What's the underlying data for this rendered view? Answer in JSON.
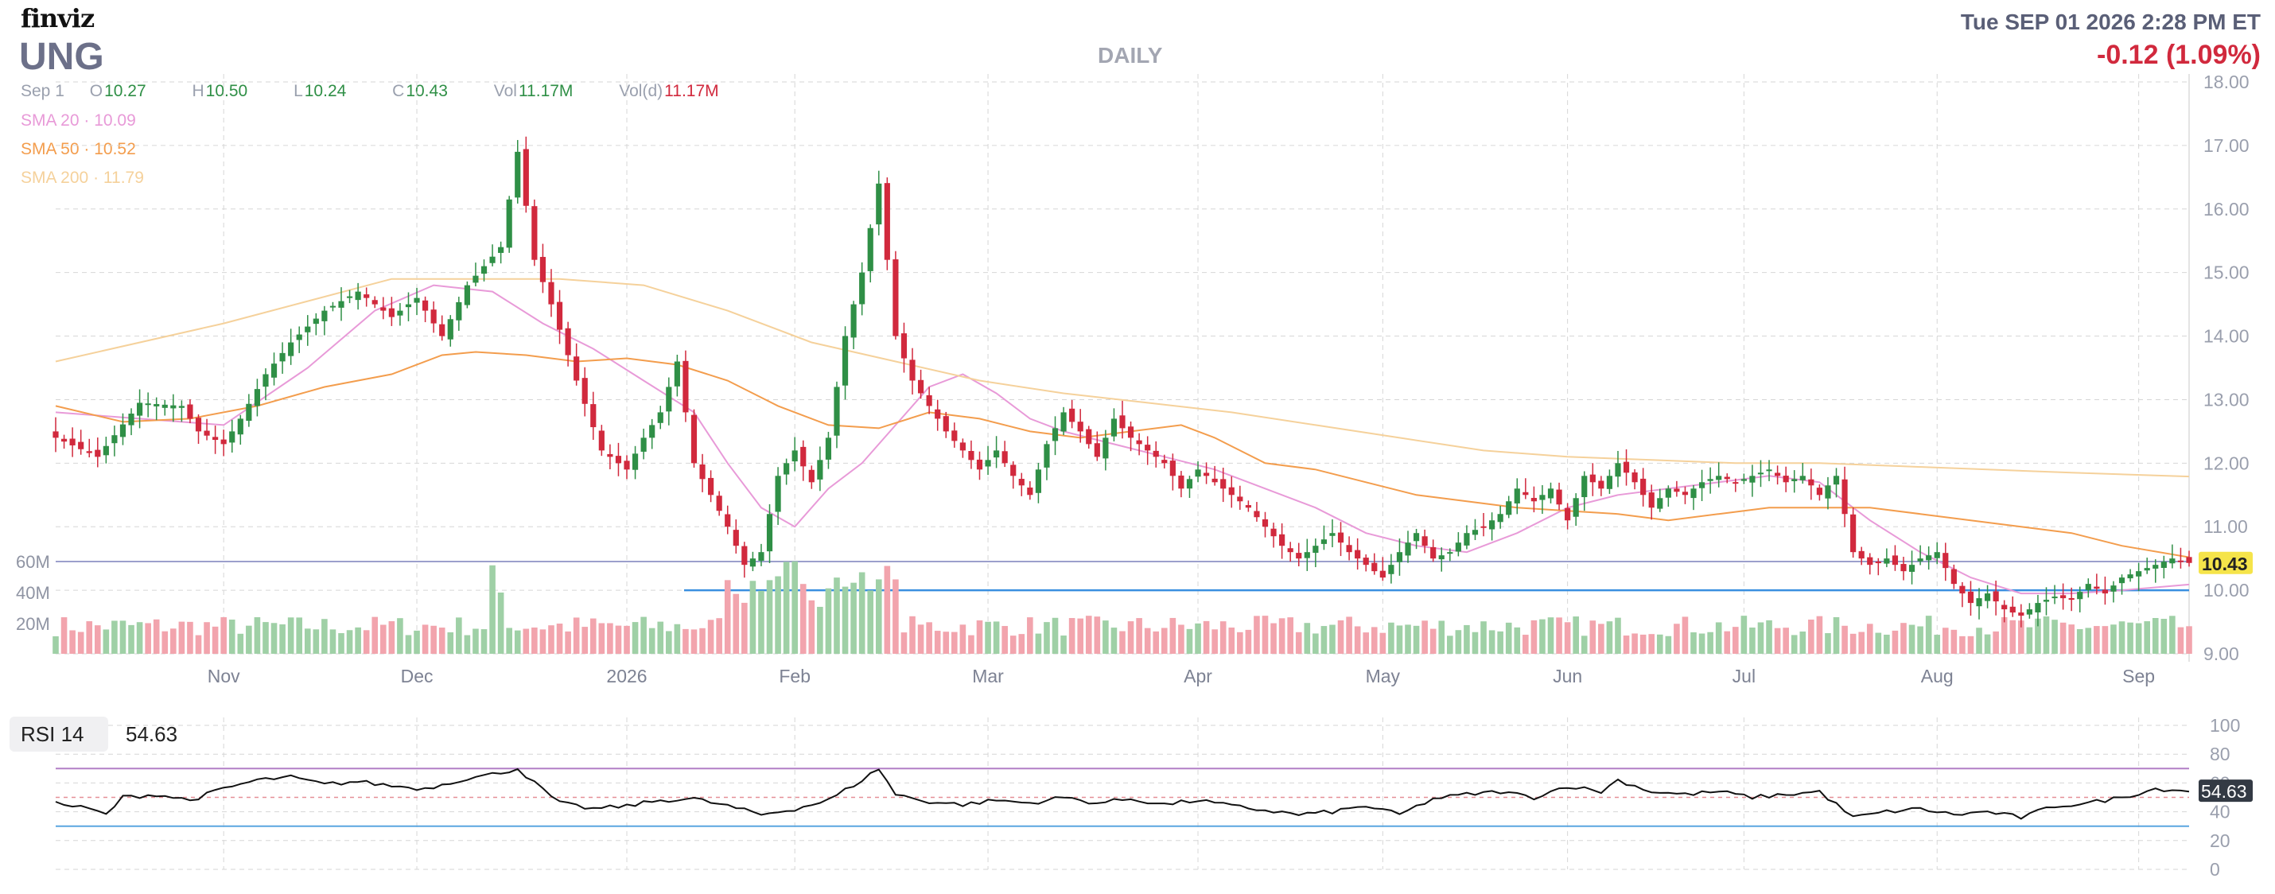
{
  "header": {
    "logo": "finviz",
    "ticker": "UNG",
    "timeframe": "DAILY",
    "datetime": "Tue SEP 01 2026 2:28 PM ET",
    "change": "-0.12 (1.09%)"
  },
  "ohlc": {
    "date": "Sep 1",
    "open_label": "O",
    "open": "10.27",
    "high_label": "H",
    "high": "10.50",
    "low_label": "L",
    "low": "10.24",
    "close_label": "C",
    "close": "10.43",
    "vol_label": "Vol",
    "vol": "11.17M",
    "vold_label": "Vol(d)",
    "vold": "11.17M"
  },
  "sma": [
    {
      "label": "SMA 20",
      "value": "10.09",
      "color": "#e89ad8"
    },
    {
      "label": "SMA 50",
      "value": "10.52",
      "color": "#f39d4d"
    },
    {
      "label": "SMA 200",
      "value": "11.79",
      "color": "#f5d19b"
    }
  ],
  "colors": {
    "up": "#2f8f46",
    "down": "#d1293d",
    "vol_up": "#9fd0a6",
    "vol_down": "#f2a4ad",
    "grid": "#d6d6d6",
    "rsi_line": "#111111",
    "rsi_upper": "#b27fc6",
    "rsi_lower": "#5aa6e0",
    "price_tag": "#f5e44a"
  },
  "chart_data": [
    {
      "type": "candlestick",
      "title": "UNG",
      "ylim": [
        9.0,
        18.0
      ],
      "y_ticks": [
        "18.00",
        "17.00",
        "16.00",
        "15.00",
        "14.00",
        "13.00",
        "12.00",
        "11.00",
        "10.00",
        "9.00"
      ],
      "x_ticks": [
        "Nov",
        "Dec",
        "2026",
        "Feb",
        "Mar",
        "Apr",
        "May",
        "Jun",
        "Jul",
        "Aug",
        "Sep"
      ],
      "volume_ticks": [
        "60M",
        "40M",
        "20M"
      ],
      "last_price": "10.43",
      "support_line": 10.0,
      "volume_reference": "60M",
      "anchors": [
        [
          0,
          12.4
        ],
        [
          5,
          12.1
        ],
        [
          10,
          12.95
        ],
        [
          15,
          12.9
        ],
        [
          17,
          12.5
        ],
        [
          20,
          12.3
        ],
        [
          22,
          12.7
        ],
        [
          25,
          13.4
        ],
        [
          28,
          13.9
        ],
        [
          32,
          14.4
        ],
        [
          36,
          14.7
        ],
        [
          40,
          14.3
        ],
        [
          43,
          14.6
        ],
        [
          46,
          14.0
        ],
        [
          49,
          14.8
        ],
        [
          53,
          15.4
        ],
        [
          55,
          16.9
        ],
        [
          57,
          15.2
        ],
        [
          59,
          14.5
        ],
        [
          62,
          13.3
        ],
        [
          65,
          12.2
        ],
        [
          68,
          11.9
        ],
        [
          70,
          12.4
        ],
        [
          72,
          12.8
        ],
        [
          74,
          13.6
        ],
        [
          76,
          12.0
        ],
        [
          78,
          11.5
        ],
        [
          80,
          11.0
        ],
        [
          82,
          10.4
        ],
        [
          84,
          10.6
        ],
        [
          86,
          11.8
        ],
        [
          88,
          12.2
        ],
        [
          90,
          11.7
        ],
        [
          92,
          12.4
        ],
        [
          94,
          14.0
        ],
        [
          96,
          15.0
        ],
        [
          98,
          16.4
        ],
        [
          100,
          14.0
        ],
        [
          102,
          13.3
        ],
        [
          104,
          12.9
        ],
        [
          106,
          12.5
        ],
        [
          108,
          12.2
        ],
        [
          110,
          11.9
        ],
        [
          112,
          12.2
        ],
        [
          114,
          11.8
        ],
        [
          116,
          11.5
        ],
        [
          118,
          12.3
        ],
        [
          120,
          12.8
        ],
        [
          122,
          12.5
        ],
        [
          124,
          12.1
        ],
        [
          126,
          12.7
        ],
        [
          128,
          12.4
        ],
        [
          130,
          12.2
        ],
        [
          132,
          12.0
        ],
        [
          134,
          11.6
        ],
        [
          136,
          11.9
        ],
        [
          138,
          11.7
        ],
        [
          140,
          11.5
        ],
        [
          142,
          11.3
        ],
        [
          144,
          11.0
        ],
        [
          146,
          10.7
        ],
        [
          148,
          10.5
        ],
        [
          150,
          10.7
        ],
        [
          152,
          10.9
        ],
        [
          154,
          10.6
        ],
        [
          156,
          10.4
        ],
        [
          158,
          10.2
        ],
        [
          160,
          10.6
        ],
        [
          162,
          10.9
        ],
        [
          164,
          10.5
        ],
        [
          166,
          10.6
        ],
        [
          168,
          10.9
        ],
        [
          170,
          11.0
        ],
        [
          172,
          11.2
        ],
        [
          174,
          11.6
        ],
        [
          176,
          11.4
        ],
        [
          178,
          11.6
        ],
        [
          180,
          11.1
        ],
        [
          182,
          11.8
        ],
        [
          184,
          11.6
        ],
        [
          186,
          12.0
        ],
        [
          188,
          11.7
        ],
        [
          190,
          11.3
        ],
        [
          192,
          11.6
        ],
        [
          194,
          11.5
        ],
        [
          196,
          11.7
        ],
        [
          198,
          11.8
        ],
        [
          200,
          11.7
        ],
        [
          202,
          11.8
        ],
        [
          204,
          11.9
        ],
        [
          206,
          11.7
        ],
        [
          208,
          11.8
        ],
        [
          210,
          11.5
        ],
        [
          212,
          11.8
        ],
        [
          214,
          10.6
        ],
        [
          216,
          10.4
        ],
        [
          218,
          10.5
        ],
        [
          220,
          10.3
        ],
        [
          222,
          10.5
        ],
        [
          224,
          10.6
        ],
        [
          226,
          10.1
        ],
        [
          228,
          9.8
        ],
        [
          230,
          9.95
        ],
        [
          232,
          9.7
        ],
        [
          234,
          9.6
        ],
        [
          236,
          9.8
        ],
        [
          238,
          9.9
        ],
        [
          240,
          9.85
        ],
        [
          242,
          10.1
        ],
        [
          244,
          9.95
        ],
        [
          246,
          10.2
        ],
        [
          248,
          10.3
        ],
        [
          250,
          10.4
        ],
        [
          252,
          10.5
        ],
        [
          254,
          10.43
        ]
      ],
      "sma_series": [
        {
          "name": "SMA 20",
          "points": [
            [
              0,
              12.8
            ],
            [
              10,
              12.7
            ],
            [
              20,
              12.6
            ],
            [
              30,
              13.5
            ],
            [
              38,
              14.4
            ],
            [
              45,
              14.8
            ],
            [
              52,
              14.7
            ],
            [
              58,
              14.2
            ],
            [
              64,
              13.8
            ],
            [
              70,
              13.3
            ],
            [
              76,
              12.8
            ],
            [
              80,
              12.0
            ],
            [
              84,
              11.3
            ],
            [
              88,
              11.0
            ],
            [
              92,
              11.6
            ],
            [
              96,
              12.0
            ],
            [
              100,
              12.6
            ],
            [
              104,
              13.2
            ],
            [
              108,
              13.4
            ],
            [
              112,
              13.1
            ],
            [
              116,
              12.7
            ],
            [
              120,
              12.5
            ],
            [
              126,
              12.3
            ],
            [
              132,
              12.1
            ],
            [
              138,
              11.9
            ],
            [
              144,
              11.6
            ],
            [
              150,
              11.3
            ],
            [
              156,
              10.9
            ],
            [
              162,
              10.7
            ],
            [
              168,
              10.6
            ],
            [
              174,
              10.9
            ],
            [
              180,
              11.3
            ],
            [
              186,
              11.5
            ],
            [
              192,
              11.6
            ],
            [
              198,
              11.7
            ],
            [
              204,
              11.8
            ],
            [
              210,
              11.7
            ],
            [
              216,
              11.1
            ],
            [
              222,
              10.6
            ],
            [
              228,
              10.2
            ],
            [
              234,
              9.95
            ],
            [
              240,
              9.95
            ],
            [
              246,
              10.0
            ],
            [
              254,
              10.09
            ]
          ]
        },
        {
          "name": "SMA 50",
          "points": [
            [
              0,
              12.9
            ],
            [
              8,
              12.65
            ],
            [
              16,
              12.7
            ],
            [
              24,
              12.9
            ],
            [
              32,
              13.2
            ],
            [
              40,
              13.4
            ],
            [
              46,
              13.7
            ],
            [
              50,
              13.75
            ],
            [
              56,
              13.7
            ],
            [
              62,
              13.6
            ],
            [
              68,
              13.65
            ],
            [
              74,
              13.55
            ],
            [
              80,
              13.3
            ],
            [
              86,
              12.9
            ],
            [
              92,
              12.6
            ],
            [
              98,
              12.55
            ],
            [
              104,
              12.8
            ],
            [
              110,
              12.7
            ],
            [
              116,
              12.5
            ],
            [
              122,
              12.4
            ],
            [
              128,
              12.5
            ],
            [
              134,
              12.6
            ],
            [
              138,
              12.4
            ],
            [
              144,
              12.0
            ],
            [
              150,
              11.9
            ],
            [
              156,
              11.7
            ],
            [
              162,
              11.5
            ],
            [
              168,
              11.4
            ],
            [
              174,
              11.3
            ],
            [
              180,
              11.25
            ],
            [
              186,
              11.2
            ],
            [
              192,
              11.1
            ],
            [
              198,
              11.2
            ],
            [
              204,
              11.3
            ],
            [
              210,
              11.3
            ],
            [
              216,
              11.3
            ],
            [
              222,
              11.2
            ],
            [
              228,
              11.1
            ],
            [
              234,
              11.0
            ],
            [
              240,
              10.9
            ],
            [
              246,
              10.7
            ],
            [
              254,
              10.52
            ]
          ]
        },
        {
          "name": "SMA 200",
          "points": [
            [
              0,
              13.6
            ],
            [
              20,
              14.2
            ],
            [
              40,
              14.9
            ],
            [
              60,
              14.9
            ],
            [
              70,
              14.8
            ],
            [
              80,
              14.4
            ],
            [
              90,
              13.9
            ],
            [
              100,
              13.6
            ],
            [
              110,
              13.3
            ],
            [
              120,
              13.1
            ],
            [
              130,
              12.95
            ],
            [
              140,
              12.8
            ],
            [
              150,
              12.6
            ],
            [
              160,
              12.4
            ],
            [
              170,
              12.2
            ],
            [
              180,
              12.1
            ],
            [
              190,
              12.05
            ],
            [
              200,
              12.0
            ],
            [
              210,
              12.0
            ],
            [
              220,
              11.95
            ],
            [
              230,
              11.9
            ],
            [
              240,
              11.85
            ],
            [
              254,
              11.79
            ]
          ]
        }
      ]
    },
    {
      "type": "line",
      "title": "RSI 14",
      "value": "54.63",
      "ylim": [
        0,
        100
      ],
      "y_ticks": [
        "100",
        "80",
        "60",
        "40",
        "20",
        "0"
      ],
      "upper": 70,
      "lower": 30,
      "anchors": [
        [
          0,
          46
        ],
        [
          4,
          42
        ],
        [
          6,
          38
        ],
        [
          8,
          50
        ],
        [
          12,
          52
        ],
        [
          16,
          48
        ],
        [
          20,
          56
        ],
        [
          24,
          62
        ],
        [
          28,
          64
        ],
        [
          32,
          59
        ],
        [
          36,
          61
        ],
        [
          40,
          58
        ],
        [
          44,
          56
        ],
        [
          48,
          62
        ],
        [
          52,
          66
        ],
        [
          55,
          70
        ],
        [
          57,
          60
        ],
        [
          60,
          46
        ],
        [
          64,
          42
        ],
        [
          68,
          44
        ],
        [
          72,
          48
        ],
        [
          76,
          49
        ],
        [
          80,
          44
        ],
        [
          84,
          38
        ],
        [
          88,
          42
        ],
        [
          92,
          48
        ],
        [
          96,
          62
        ],
        [
          98,
          70
        ],
        [
          100,
          52
        ],
        [
          104,
          47
        ],
        [
          108,
          45
        ],
        [
          112,
          48
        ],
        [
          116,
          46
        ],
        [
          120,
          50
        ],
        [
          124,
          46
        ],
        [
          128,
          49
        ],
        [
          132,
          45
        ],
        [
          136,
          48
        ],
        [
          140,
          44
        ],
        [
          144,
          41
        ],
        [
          148,
          38
        ],
        [
          152,
          40
        ],
        [
          156,
          44
        ],
        [
          160,
          38
        ],
        [
          164,
          49
        ],
        [
          168,
          52
        ],
        [
          172,
          54
        ],
        [
          176,
          50
        ],
        [
          180,
          58
        ],
        [
          184,
          54
        ],
        [
          186,
          62
        ],
        [
          190,
          54
        ],
        [
          194,
          52
        ],
        [
          198,
          54
        ],
        [
          202,
          50
        ],
        [
          206,
          52
        ],
        [
          210,
          54
        ],
        [
          214,
          36
        ],
        [
          218,
          40
        ],
        [
          222,
          42
        ],
        [
          226,
          38
        ],
        [
          230,
          40
        ],
        [
          234,
          36
        ],
        [
          238,
          44
        ],
        [
          242,
          46
        ],
        [
          246,
          50
        ],
        [
          250,
          56
        ],
        [
          254,
          54.63
        ]
      ]
    }
  ]
}
